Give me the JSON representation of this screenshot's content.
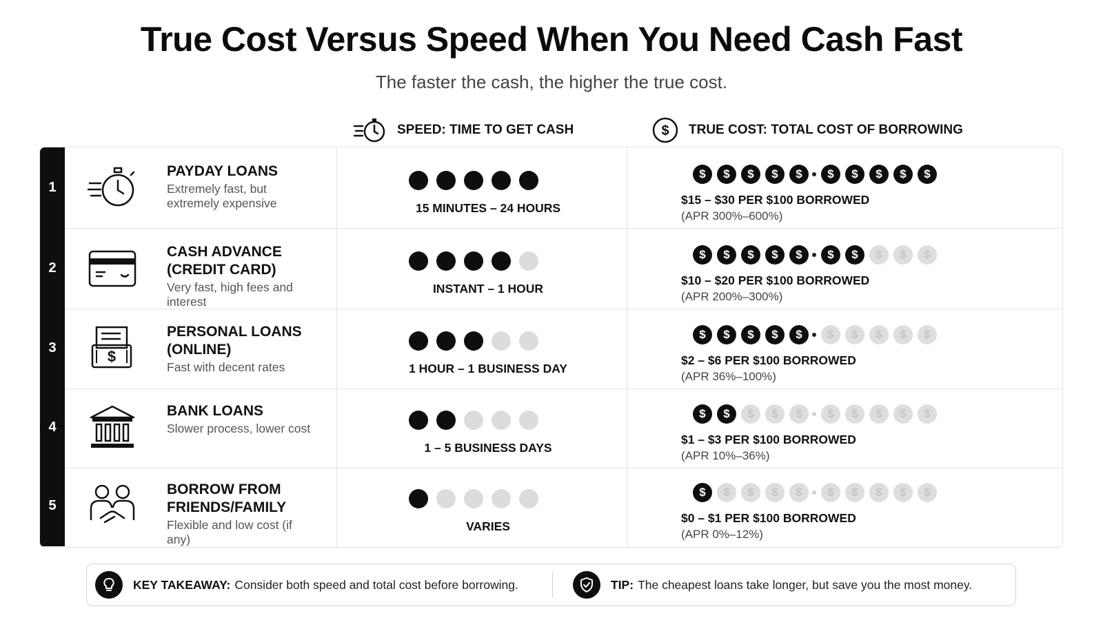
{
  "title": "True Cost Versus Speed When You Need Cash Fast",
  "subtitle": "The faster the cash, the higher the true cost.",
  "columns": {
    "speed": {
      "label": "SPEED: TIME TO GET CASH",
      "icon": "stopwatch-icon"
    },
    "cost": {
      "label": "TRUE COST: TOTAL COST OF BORROWING",
      "icon": "dollar-circle-icon"
    }
  },
  "rows": [
    {
      "rank": "1",
      "name": "PAYDAY LOANS",
      "desc": "Extremely fast, but extremely expensive",
      "icon": "stopwatch-icon",
      "speed_level": 5,
      "speed_label": "15 MINUTES – 24 HOURS",
      "cost_level": 10,
      "cost_label": "$15 – $30 PER $100 BORROWED",
      "apr": "(APR 300%–600%)"
    },
    {
      "rank": "2",
      "name": "CASH ADVANCE (CREDIT CARD)",
      "desc": "Very fast, high fees and interest",
      "icon": "credit-card-icon",
      "speed_level": 4,
      "speed_label": "INSTANT – 1 HOUR",
      "cost_level": 7,
      "cost_label": "$10 – $20 PER $100 BORROWED",
      "apr": "(APR 200%–300%)"
    },
    {
      "rank": "3",
      "name": "PERSONAL LOANS (ONLINE)",
      "desc": "Fast with decent rates",
      "icon": "loan-document-icon",
      "speed_level": 3,
      "speed_label": "1 HOUR – 1 BUSINESS DAY",
      "cost_level": 5.5,
      "cost_label": "$2 – $6 PER $100 BORROWED",
      "apr": "(APR 36%–100%)"
    },
    {
      "rank": "4",
      "name": "BANK LOANS",
      "desc": "Slower process, lower cost",
      "icon": "bank-icon",
      "speed_level": 2,
      "speed_label": "1 – 5 BUSINESS DAYS",
      "cost_level": 2,
      "cost_label": "$1 – $3 PER $100 BORROWED",
      "apr": "(APR 10%–36%)"
    },
    {
      "rank": "5",
      "name": "BORROW FROM FRIENDS/FAMILY",
      "desc": "Flexible and low cost (if any)",
      "icon": "friends-handshake-icon",
      "speed_level": 1,
      "speed_label": "VARIES",
      "cost_level": 1,
      "cost_label": "$0 – $1 PER $100 BORROWED",
      "apr": "(APR 0%–12%)"
    }
  ],
  "scale": {
    "speed_max": 5,
    "cost_max": 10,
    "coin_symbol": "$"
  },
  "footer": {
    "takeaway_label": "KEY TAKEAWAY:",
    "takeaway_text": "Consider both speed and total cost before borrowing.",
    "takeaway_icon": "lightbulb-icon",
    "tip_label": "TIP:",
    "tip_text": "The cheapest loans take longer, but save you the most money.",
    "tip_icon": "shield-check-icon"
  },
  "colors": {
    "filled": "#0e0e0e",
    "empty": "#dcdcdc"
  }
}
